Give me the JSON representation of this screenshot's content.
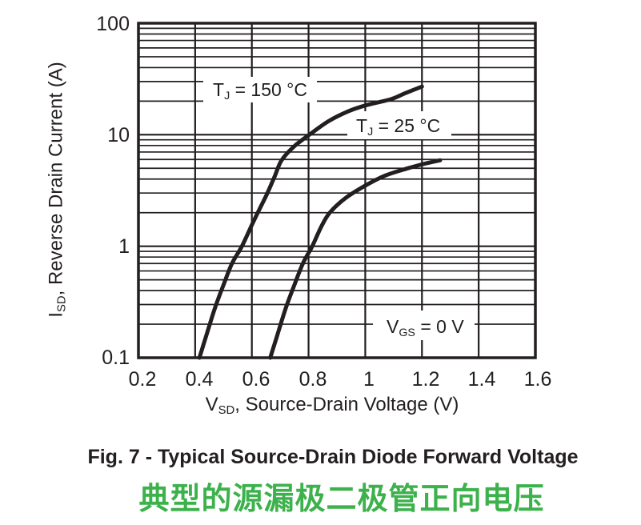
{
  "colors": {
    "ink": "#231f20",
    "grid": "#231f20",
    "curve": "#231f20",
    "green": "#3cb14c",
    "background": "#ffffff"
  },
  "chart_data": {
    "type": "line",
    "title": "Fig. 7 - Typical Source-Drain Diode Forward Voltage",
    "title_cn": "典型的源漏极二极管正向电压",
    "xlabel": "VSD, Source-Drain Voltage (V)",
    "ylabel": "ISD, Reverse Drain Current (A)",
    "xlabel_parts": {
      "pre": "V",
      "sub": "SD",
      "post": ", Source-Drain Voltage (V)"
    },
    "ylabel_parts": {
      "pre": "I",
      "sub": "SD",
      "post": ", Reverse Drain Current (A)"
    },
    "x_axis": {
      "scale": "linear",
      "min": 0.2,
      "max": 1.6,
      "ticks": [
        0.2,
        0.4,
        0.6,
        0.8,
        1.0,
        1.2,
        1.4,
        1.6
      ],
      "labels": [
        "0.2",
        "0.4",
        "0.6",
        "0.8",
        "1",
        "1.2",
        "1.4",
        "1.6"
      ],
      "grid_ticks": [
        0.4,
        0.6,
        0.8,
        1.0,
        1.2,
        1.4
      ]
    },
    "y_axis": {
      "scale": "log",
      "min": 0.1,
      "max": 100,
      "ticks": [
        0.1,
        1,
        10,
        100
      ],
      "labels": [
        "0.1",
        "1",
        "10",
        "100"
      ],
      "minor_gridlines": true
    },
    "legend_position": "inline-annotations",
    "grid": true,
    "series": [
      {
        "name": "TJ = 150 °C",
        "label_parts": {
          "pre": "T",
          "sub": "J",
          "post": " = 150 °C"
        },
        "points": [
          [
            0.415,
            0.1
          ],
          [
            0.44,
            0.16
          ],
          [
            0.47,
            0.28
          ],
          [
            0.5,
            0.45
          ],
          [
            0.53,
            0.7
          ],
          [
            0.565,
            1.0
          ],
          [
            0.6,
            1.55
          ],
          [
            0.625,
            2.1
          ],
          [
            0.655,
            3.0
          ],
          [
            0.68,
            4.2
          ],
          [
            0.705,
            5.9
          ],
          [
            0.75,
            7.9
          ],
          [
            0.81,
            10.3
          ],
          [
            0.87,
            13.2
          ],
          [
            0.94,
            16.2
          ],
          [
            1.0,
            18.3
          ],
          [
            1.09,
            20.8
          ],
          [
            1.14,
            23.5
          ],
          [
            1.2,
            27.0
          ]
        ]
      },
      {
        "name": "TJ = 25 °C",
        "label_parts": {
          "pre": "T",
          "sub": "J",
          "post": " = 25 °C"
        },
        "points": [
          [
            0.665,
            0.1
          ],
          [
            0.69,
            0.16
          ],
          [
            0.72,
            0.28
          ],
          [
            0.75,
            0.45
          ],
          [
            0.78,
            0.7
          ],
          [
            0.813,
            1.0
          ],
          [
            0.845,
            1.5
          ],
          [
            0.875,
            2.0
          ],
          [
            0.93,
            2.7
          ],
          [
            1.0,
            3.5
          ],
          [
            1.07,
            4.3
          ],
          [
            1.15,
            5.0
          ],
          [
            1.21,
            5.5
          ],
          [
            1.264,
            5.9
          ]
        ]
      }
    ],
    "annotation": {
      "name": "VGS = 0 V",
      "label_parts": {
        "pre": "V",
        "sub": "GS",
        "post": " = 0 V"
      }
    }
  },
  "layout_note": "log-y 3 decades, linear x"
}
